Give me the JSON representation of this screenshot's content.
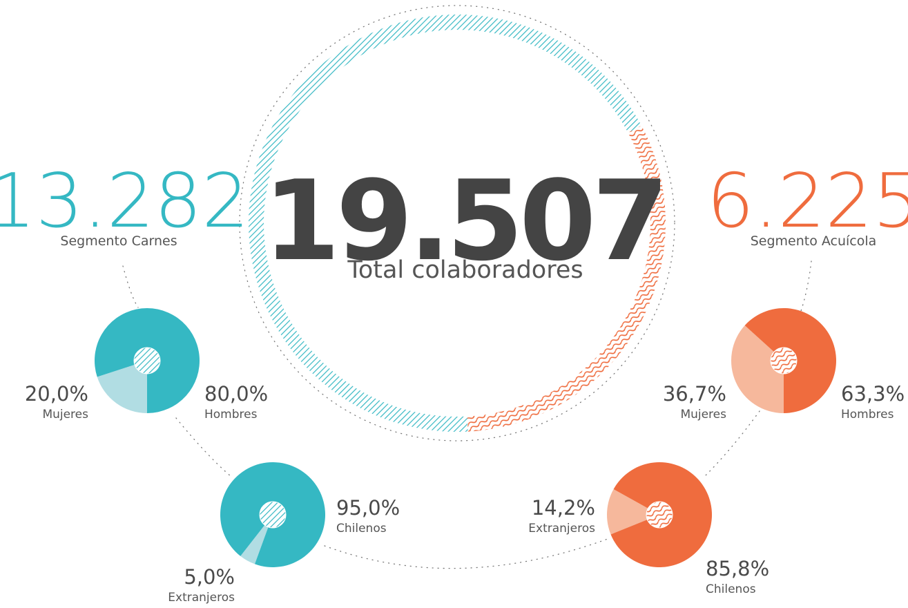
{
  "total": {
    "value": 19507,
    "value_label": "19.507",
    "label": "Total colaboradores"
  },
  "segments": [
    {
      "value": 13282,
      "value_label": "13.282",
      "label": "Segmento Carnes",
      "color": "#35b8c3"
    },
    {
      "value": 6225,
      "value_label": "6.225",
      "label": "Segmento Acuícola",
      "color": "#ef6c3e"
    }
  ],
  "chart_data": [
    {
      "type": "pie",
      "categories": [
        "Mujeres",
        "Hombres"
      ],
      "values": [
        20.0,
        80.0
      ],
      "value_labels": [
        "20,0%",
        "80,0%"
      ],
      "colors": [
        "#b1dde3",
        "#35b8c3"
      ]
    },
    {
      "type": "pie",
      "categories": [
        "Extranjeros",
        "Chilenos"
      ],
      "values": [
        5.0,
        95.0
      ],
      "value_labels": [
        "5,0%",
        "95,0%"
      ],
      "colors": [
        "#b1dde3",
        "#35b8c3"
      ]
    },
    {
      "type": "pie",
      "categories": [
        "Mujeres",
        "Hombres"
      ],
      "values": [
        36.7,
        63.3
      ],
      "value_labels": [
        "36,7%",
        "63,3%"
      ],
      "colors": [
        "#f6b89c",
        "#ef6c3e"
      ]
    },
    {
      "type": "pie",
      "categories": [
        "Extranjeros",
        "Chilenos"
      ],
      "values": [
        14.2,
        85.8
      ],
      "value_labels": [
        "14,2%",
        "85,8%"
      ],
      "colors": [
        "#f6b89c",
        "#ef6c3e"
      ]
    }
  ]
}
